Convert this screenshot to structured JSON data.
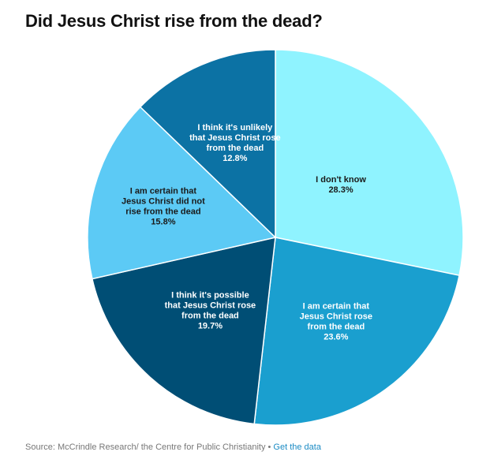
{
  "chart_data": {
    "type": "pie",
    "title": "Did Jesus Christ rise from the dead?",
    "start_angle_deg": 0,
    "direction": "clockwise",
    "slices": [
      {
        "label_lines": [
          "I don't know"
        ],
        "value": 28.3,
        "value_label": "28.3%",
        "color": "#8ff3ff",
        "text_color": "#1a1a1a"
      },
      {
        "label_lines": [
          "I am certain that",
          "Jesus Christ rose",
          "from the dead"
        ],
        "value": 23.6,
        "value_label": "23.6%",
        "color": "#1a9fcf",
        "text_color": "#ffffff"
      },
      {
        "label_lines": [
          "I think it's possible",
          "that Jesus Christ rose",
          "from the dead"
        ],
        "value": 19.7,
        "value_label": "19.7%",
        "color": "#004e75",
        "text_color": "#ffffff"
      },
      {
        "label_lines": [
          "I am certain that",
          "Jesus Christ did not",
          "rise from the dead"
        ],
        "value": 15.8,
        "value_label": "15.8%",
        "color": "#5ccaf5",
        "text_color": "#1a1a1a"
      },
      {
        "label_lines": [
          "I think it's unlikely",
          "that Jesus Christ rose",
          "from the dead"
        ],
        "value": 12.8,
        "value_label": "12.8%",
        "color": "#0c72a4",
        "text_color": "#ffffff"
      }
    ]
  },
  "footer": {
    "source_text": "Source: McCrindle Research/ the Centre for Public Christianity • ",
    "link_label": "Get the data"
  }
}
